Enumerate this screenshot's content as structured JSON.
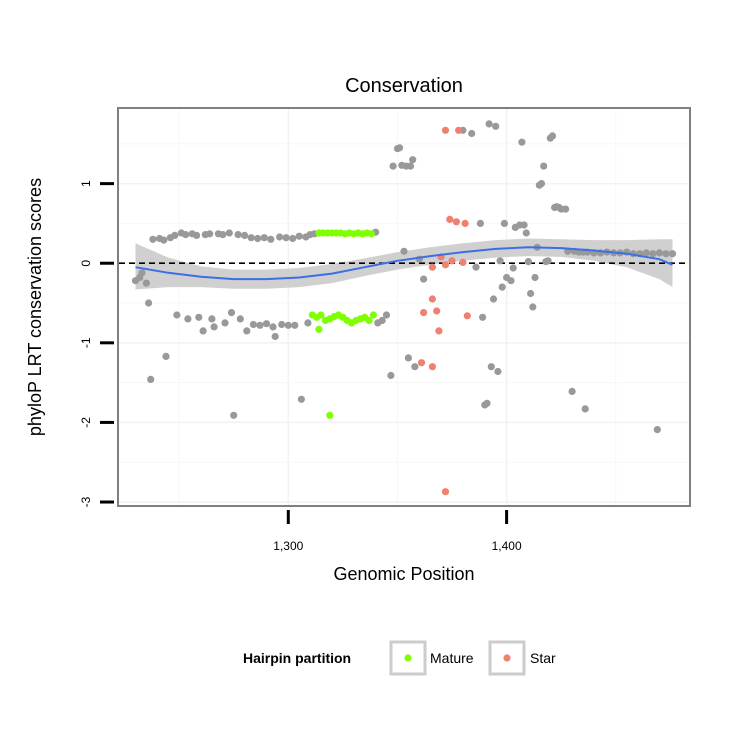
{
  "chart_data": {
    "type": "scatter",
    "title": "Conservation",
    "xlabel": "Genomic Position",
    "ylabel": "phyloP LRT conservation scores",
    "xlim": [
      1222,
      1484
    ],
    "ylim": [
      -3.05,
      1.95
    ],
    "x_ticks": [
      1300,
      1400
    ],
    "x_tick_labels": [
      "1,300",
      "1,400"
    ],
    "y_ticks": [
      -3,
      -2,
      -1,
      0,
      1
    ],
    "y_tick_labels": [
      "-3",
      "-2",
      "-1",
      "0",
      "1"
    ],
    "reference_line": {
      "y": 0,
      "style": "dashed"
    },
    "grid": true,
    "legend": {
      "title": "Hairpin partition",
      "position": "bottom",
      "entries": [
        {
          "label": "Mature",
          "color": "#7fff00"
        },
        {
          "label": "Star",
          "color": "#f08070"
        }
      ]
    },
    "background_color": "#999999",
    "smooth": {
      "color": "#3b6fe6",
      "band_color": "#c8c8c8",
      "x": [
        1230,
        1245,
        1260,
        1275,
        1290,
        1305,
        1320,
        1335,
        1350,
        1365,
        1380,
        1395,
        1410,
        1425,
        1440,
        1455,
        1470,
        1476
      ],
      "y": [
        -0.05,
        -0.12,
        -0.17,
        -0.2,
        -0.2,
        -0.18,
        -0.13,
        -0.05,
        0.03,
        0.09,
        0.14,
        0.18,
        0.2,
        0.19,
        0.16,
        0.12,
        0.05,
        -0.02
      ],
      "lower": [
        -0.33,
        -0.3,
        -0.3,
        -0.32,
        -0.32,
        -0.3,
        -0.25,
        -0.16,
        -0.08,
        -0.02,
        0.03,
        0.07,
        0.09,
        0.08,
        0.03,
        -0.05,
        -0.2,
        -0.3
      ],
      "upper": [
        0.25,
        0.07,
        -0.04,
        -0.08,
        -0.08,
        -0.06,
        -0.01,
        0.06,
        0.14,
        0.2,
        0.25,
        0.29,
        0.31,
        0.3,
        0.29,
        0.29,
        0.3,
        0.3
      ]
    },
    "series": [
      {
        "name": "Mature",
        "color": "#7fff00",
        "points": [
          [
            1314,
            0.38
          ],
          [
            1316,
            0.38
          ],
          [
            1318,
            0.38
          ],
          [
            1320,
            0.38
          ],
          [
            1322,
            0.38
          ],
          [
            1324,
            0.38
          ],
          [
            1326,
            0.37
          ],
          [
            1328,
            0.38
          ],
          [
            1330,
            0.37
          ],
          [
            1332,
            0.38
          ],
          [
            1334,
            0.37
          ],
          [
            1336,
            0.38
          ],
          [
            1338,
            0.37
          ],
          [
            1311,
            -0.65
          ],
          [
            1313,
            -0.68
          ],
          [
            1315,
            -0.65
          ],
          [
            1317,
            -0.72
          ],
          [
            1319,
            -0.7
          ],
          [
            1321,
            -0.67
          ],
          [
            1323,
            -0.65
          ],
          [
            1325,
            -0.68
          ],
          [
            1327,
            -0.72
          ],
          [
            1329,
            -0.75
          ],
          [
            1331,
            -0.72
          ],
          [
            1333,
            -0.7
          ],
          [
            1335,
            -0.68
          ],
          [
            1337,
            -0.72
          ],
          [
            1339,
            -0.65
          ],
          [
            1314,
            -0.83
          ],
          [
            1319,
            -1.91
          ]
        ]
      },
      {
        "name": "Star",
        "color": "#f08070",
        "points": [
          [
            1372,
            1.67
          ],
          [
            1378,
            1.67
          ],
          [
            1374,
            0.55
          ],
          [
            1377,
            0.52
          ],
          [
            1381,
            0.5
          ],
          [
            1370,
            0.08
          ],
          [
            1375,
            0.03
          ],
          [
            1380,
            0.01
          ],
          [
            1366,
            -0.05
          ],
          [
            1372,
            -0.02
          ],
          [
            1366,
            -0.45
          ],
          [
            1362,
            -0.62
          ],
          [
            1368,
            -0.6
          ],
          [
            1382,
            -0.66
          ],
          [
            1369,
            -0.85
          ],
          [
            1361,
            -1.25
          ],
          [
            1366,
            -1.3
          ],
          [
            1372,
            -2.87
          ]
        ]
      },
      {
        "name": "",
        "color": "#999999",
        "points": [
          [
            1230,
            -0.22
          ],
          [
            1232,
            -0.18
          ],
          [
            1233,
            -0.12
          ],
          [
            1235,
            -0.25
          ],
          [
            1236,
            -0.5
          ],
          [
            1237,
            -1.46
          ],
          [
            1238,
            0.3
          ],
          [
            1241,
            0.31
          ],
          [
            1243,
            0.29
          ],
          [
            1244,
            -1.17
          ],
          [
            1246,
            0.32
          ],
          [
            1248,
            0.35
          ],
          [
            1249,
            -0.65
          ],
          [
            1251,
            0.38
          ],
          [
            1253,
            0.36
          ],
          [
            1254,
            -0.7
          ],
          [
            1256,
            0.37
          ],
          [
            1258,
            0.35
          ],
          [
            1259,
            -0.68
          ],
          [
            1261,
            -0.85
          ],
          [
            1262,
            0.36
          ],
          [
            1264,
            0.37
          ],
          [
            1265,
            -0.7
          ],
          [
            1266,
            -0.8
          ],
          [
            1268,
            0.37
          ],
          [
            1270,
            0.36
          ],
          [
            1271,
            -0.75
          ],
          [
            1273,
            0.38
          ],
          [
            1274,
            -0.62
          ],
          [
            1275,
            -1.91
          ],
          [
            1277,
            0.36
          ],
          [
            1278,
            -0.7
          ],
          [
            1280,
            0.35
          ],
          [
            1281,
            -0.85
          ],
          [
            1283,
            0.32
          ],
          [
            1284,
            -0.77
          ],
          [
            1286,
            0.31
          ],
          [
            1287,
            -0.78
          ],
          [
            1289,
            0.32
          ],
          [
            1290,
            -0.76
          ],
          [
            1292,
            0.3
          ],
          [
            1293,
            -0.8
          ],
          [
            1294,
            -0.92
          ],
          [
            1296,
            0.33
          ],
          [
            1297,
            -0.77
          ],
          [
            1299,
            0.32
          ],
          [
            1300,
            -0.78
          ],
          [
            1302,
            0.31
          ],
          [
            1303,
            -0.78
          ],
          [
            1305,
            0.34
          ],
          [
            1306,
            -1.71
          ],
          [
            1308,
            0.33
          ],
          [
            1309,
            -0.75
          ],
          [
            1310,
            0.36
          ],
          [
            1312,
            0.37
          ],
          [
            1340,
            0.39
          ],
          [
            1341,
            -0.75
          ],
          [
            1343,
            -0.72
          ],
          [
            1345,
            -0.65
          ],
          [
            1347,
            -1.41
          ],
          [
            1348,
            1.22
          ],
          [
            1350,
            1.44
          ],
          [
            1351,
            1.45
          ],
          [
            1352,
            1.23
          ],
          [
            1353,
            0.15
          ],
          [
            1354,
            1.22
          ],
          [
            1356,
            1.22
          ],
          [
            1357,
            1.3
          ],
          [
            1355,
            -1.19
          ],
          [
            1358,
            -1.3
          ],
          [
            1360,
            0.05
          ],
          [
            1362,
            -0.2
          ],
          [
            1380,
            1.67
          ],
          [
            1384,
            1.63
          ],
          [
            1386,
            -0.05
          ],
          [
            1388,
            0.5
          ],
          [
            1389,
            -0.68
          ],
          [
            1390,
            -1.78
          ],
          [
            1391,
            -1.76
          ],
          [
            1392,
            1.75
          ],
          [
            1393,
            -1.3
          ],
          [
            1394,
            -0.45
          ],
          [
            1395,
            1.72
          ],
          [
            1396,
            -1.36
          ],
          [
            1397,
            0.03
          ],
          [
            1398,
            -0.3
          ],
          [
            1399,
            0.5
          ],
          [
            1400,
            -0.18
          ],
          [
            1402,
            -0.22
          ],
          [
            1403,
            -0.06
          ],
          [
            1404,
            0.45
          ],
          [
            1406,
            0.48
          ],
          [
            1407,
            1.52
          ],
          [
            1408,
            0.48
          ],
          [
            1409,
            0.38
          ],
          [
            1410,
            0.02
          ],
          [
            1411,
            -0.38
          ],
          [
            1412,
            -0.55
          ],
          [
            1413,
            -0.18
          ],
          [
            1414,
            0.2
          ],
          [
            1415,
            0.98
          ],
          [
            1416,
            1.0
          ],
          [
            1417,
            1.22
          ],
          [
            1418,
            0.02
          ],
          [
            1419,
            0.03
          ],
          [
            1420,
            1.57
          ],
          [
            1421,
            1.6
          ],
          [
            1422,
            0.7
          ],
          [
            1423,
            0.71
          ],
          [
            1424,
            0.7
          ],
          [
            1425,
            0.68
          ],
          [
            1427,
            0.68
          ],
          [
            1428,
            0.15
          ],
          [
            1430,
            -1.61
          ],
          [
            1431,
            0.15
          ],
          [
            1433,
            0.14
          ],
          [
            1435,
            0.14
          ],
          [
            1436,
            -1.83
          ],
          [
            1437,
            0.14
          ],
          [
            1440,
            0.13
          ],
          [
            1443,
            0.13
          ],
          [
            1446,
            0.14
          ],
          [
            1449,
            0.13
          ],
          [
            1452,
            0.13
          ],
          [
            1455,
            0.14
          ],
          [
            1458,
            0.12
          ],
          [
            1461,
            0.12
          ],
          [
            1464,
            0.13
          ],
          [
            1467,
            0.12
          ],
          [
            1469,
            -2.09
          ],
          [
            1470,
            0.13
          ],
          [
            1473,
            0.12
          ],
          [
            1476,
            0.12
          ]
        ]
      }
    ]
  }
}
